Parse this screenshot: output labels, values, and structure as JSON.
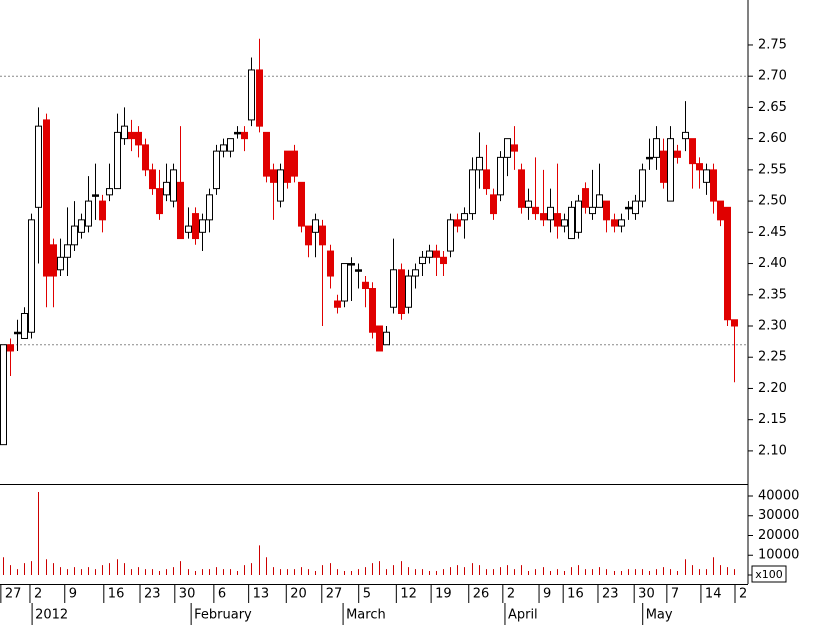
{
  "chart_data": {
    "type": "candlestick",
    "open": [
      2.11,
      2.27,
      2.29,
      2.28,
      2.29,
      2.49,
      2.63,
      2.43,
      2.39,
      2.41,
      2.43,
      2.45,
      2.46,
      2.51,
      2.5,
      2.51,
      2.52,
      2.6,
      2.61,
      2.61,
      2.59,
      2.55,
      2.52,
      2.51,
      2.5,
      2.53,
      2.45,
      2.48,
      2.45,
      2.47,
      2.52,
      2.58,
      2.58,
      2.61,
      2.61,
      2.63,
      2.71,
      2.61,
      2.55,
      2.5,
      2.58,
      2.58,
      2.53,
      2.46,
      2.45,
      2.46,
      2.42,
      2.34,
      2.34,
      2.4,
      2.39,
      2.37,
      2.36,
      2.3,
      2.27,
      2.33,
      2.39,
      2.33,
      2.38,
      2.4,
      2.41,
      2.42,
      2.41,
      2.42,
      2.47,
      2.47,
      2.48,
      2.55,
      2.55,
      2.51,
      2.51,
      2.57,
      2.59,
      2.55,
      2.49,
      2.49,
      2.48,
      2.47,
      2.48,
      2.46,
      2.44,
      2.45,
      2.52,
      2.48,
      2.49,
      2.5,
      2.47,
      2.46,
      2.49,
      2.48,
      2.5,
      2.57,
      2.57,
      2.58,
      2.5,
      2.58,
      2.6,
      2.6,
      2.56,
      2.53,
      2.55,
      2.5,
      2.49,
      2.31
    ],
    "high": [
      2.27,
      2.28,
      2.31,
      2.33,
      2.48,
      2.65,
      2.64,
      2.44,
      2.44,
      2.49,
      2.5,
      2.48,
      2.54,
      2.56,
      2.51,
      2.56,
      2.64,
      2.65,
      2.63,
      2.62,
      2.6,
      2.56,
      2.55,
      2.56,
      2.56,
      2.62,
      2.49,
      2.49,
      2.48,
      2.52,
      2.59,
      2.6,
      2.6,
      2.62,
      2.62,
      2.73,
      2.76,
      2.61,
      2.56,
      2.56,
      2.58,
      2.59,
      2.53,
      2.46,
      2.48,
      2.47,
      2.43,
      2.35,
      2.4,
      2.41,
      2.4,
      2.38,
      2.37,
      2.3,
      2.3,
      2.44,
      2.4,
      2.39,
      2.4,
      2.42,
      2.43,
      2.43,
      2.42,
      2.48,
      2.48,
      2.49,
      2.57,
      2.61,
      2.59,
      2.52,
      2.58,
      2.6,
      2.62,
      2.56,
      2.52,
      2.57,
      2.55,
      2.52,
      2.56,
      2.48,
      2.5,
      2.51,
      2.53,
      2.55,
      2.56,
      2.5,
      2.48,
      2.48,
      2.5,
      2.51,
      2.56,
      2.6,
      2.62,
      2.6,
      2.62,
      2.59,
      2.66,
      2.6,
      2.57,
      2.56,
      2.56,
      2.5,
      2.49,
      2.31
    ],
    "low": [
      2.11,
      2.22,
      2.26,
      2.28,
      2.28,
      2.4,
      2.33,
      2.33,
      2.38,
      2.38,
      2.42,
      2.44,
      2.45,
      2.47,
      2.45,
      2.5,
      2.52,
      2.59,
      2.58,
      2.57,
      2.54,
      2.51,
      2.47,
      2.5,
      2.49,
      2.44,
      2.44,
      2.43,
      2.42,
      2.45,
      2.51,
      2.57,
      2.57,
      2.6,
      2.58,
      2.62,
      2.61,
      2.53,
      2.47,
      2.49,
      2.52,
      2.53,
      2.45,
      2.41,
      2.41,
      2.3,
      2.36,
      2.32,
      2.33,
      2.34,
      2.36,
      2.33,
      2.28,
      2.26,
      2.27,
      2.32,
      2.31,
      2.32,
      2.36,
      2.38,
      2.4,
      2.38,
      2.38,
      2.41,
      2.45,
      2.44,
      2.47,
      2.52,
      2.51,
      2.47,
      2.5,
      2.54,
      2.55,
      2.48,
      2.47,
      2.47,
      2.46,
      2.45,
      2.44,
      2.45,
      2.44,
      2.44,
      2.48,
      2.47,
      2.49,
      2.45,
      2.45,
      2.45,
      2.47,
      2.47,
      2.49,
      2.55,
      2.55,
      2.52,
      2.5,
      2.56,
      2.58,
      2.52,
      2.52,
      2.51,
      2.48,
      2.46,
      2.3,
      2.21
    ],
    "close": [
      2.27,
      2.26,
      2.29,
      2.32,
      2.47,
      2.62,
      2.38,
      2.38,
      2.41,
      2.43,
      2.46,
      2.47,
      2.5,
      2.51,
      2.47,
      2.52,
      2.61,
      2.62,
      2.6,
      2.59,
      2.55,
      2.52,
      2.48,
      2.53,
      2.55,
      2.44,
      2.46,
      2.44,
      2.47,
      2.51,
      2.58,
      2.59,
      2.6,
      2.61,
      2.6,
      2.71,
      2.62,
      2.54,
      2.53,
      2.55,
      2.53,
      2.54,
      2.46,
      2.43,
      2.47,
      2.43,
      2.38,
      2.33,
      2.4,
      2.4,
      2.39,
      2.36,
      2.29,
      2.26,
      2.29,
      2.39,
      2.32,
      2.38,
      2.39,
      2.41,
      2.42,
      2.41,
      2.4,
      2.47,
      2.46,
      2.48,
      2.55,
      2.57,
      2.52,
      2.48,
      2.57,
      2.6,
      2.58,
      2.49,
      2.5,
      2.48,
      2.47,
      2.49,
      2.46,
      2.47,
      2.49,
      2.5,
      2.49,
      2.49,
      2.51,
      2.47,
      2.46,
      2.47,
      2.49,
      2.5,
      2.55,
      2.57,
      2.6,
      2.53,
      2.6,
      2.57,
      2.61,
      2.56,
      2.55,
      2.55,
      2.5,
      2.47,
      2.31,
      2.3
    ],
    "volume": [
      9000,
      5000,
      3000,
      6000,
      7000,
      42000,
      8000,
      6000,
      4000,
      3000,
      4000,
      3000,
      4000,
      3000,
      5000,
      6000,
      8000,
      6000,
      3000,
      4000,
      3000,
      3000,
      2000,
      3000,
      4000,
      7000,
      3000,
      2000,
      3000,
      3000,
      4000,
      3000,
      3000,
      2000,
      5000,
      6000,
      15000,
      9000,
      4000,
      3000,
      3000,
      3000,
      4000,
      3000,
      2000,
      5000,
      6000,
      3000,
      2000,
      2000,
      3000,
      4000,
      6000,
      7000,
      3000,
      5000,
      7000,
      4000,
      3000,
      3000,
      2000,
      2000,
      3000,
      4000,
      5000,
      4000,
      6000,
      5000,
      3000,
      3000,
      4000,
      5000,
      3000,
      5000,
      2000,
      3000,
      4000,
      2000,
      3000,
      2000,
      4000,
      5000,
      3000,
      3000,
      4000,
      3000,
      2000,
      2000,
      3000,
      3000,
      3000,
      2000,
      3000,
      4000,
      3000,
      2000,
      8000,
      5000,
      3000,
      3000,
      9000,
      5000,
      4000,
      3000
    ],
    "up_color": "#ffffff",
    "down_color": "#e00000",
    "flat_color": "#000000",
    "volume_color": "#cc0000",
    "reference_lines": [
      2.7,
      2.27
    ],
    "xlim": [
      -0.42,
      104.93
    ],
    "ylim": [
      2.047,
      2.822
    ],
    "yticks": [
      {
        "value": 2.1,
        "label": "2.10"
      },
      2.15,
      {
        "value": 2.2,
        "label": "2.20"
      },
      2.25,
      {
        "value": 2.3,
        "label": "2.30"
      },
      2.35,
      {
        "value": 2.4,
        "label": "2.40"
      },
      2.45,
      {
        "value": 2.5,
        "label": "2.50"
      },
      2.55,
      {
        "value": 2.6,
        "label": "2.60"
      },
      2.65,
      {
        "value": 2.7,
        "label": "2.70"
      },
      2.75
    ],
    "y2lim": [
      -4560,
      45570
    ],
    "y2ticks": [
      0,
      10000,
      20000,
      30000,
      40000
    ],
    "volume_unit": "x100",
    "xticks": [
      {
        "value": -0.3,
        "label": "27"
      },
      {
        "value": 3.8,
        "label": "2"
      },
      {
        "value": 8.7,
        "label": "9"
      },
      {
        "value": 14.2,
        "label": "16"
      },
      {
        "value": 19.3,
        "label": "23"
      },
      {
        "value": 24.2,
        "label": "30"
      },
      {
        "value": 29.7,
        "label": "6"
      },
      {
        "value": 34.6,
        "label": "13"
      },
      {
        "value": 39.9,
        "label": "20"
      },
      {
        "value": 44.9,
        "label": "27"
      },
      {
        "value": 50.1,
        "label": "5"
      },
      {
        "value": 55.4,
        "label": "12"
      },
      {
        "value": 60.3,
        "label": "19"
      },
      {
        "value": 65.6,
        "label": "26"
      },
      {
        "value": 70.4,
        "label": "2"
      },
      {
        "value": 75.5,
        "label": "9"
      },
      {
        "value": 78.9,
        "label": "16"
      },
      {
        "value": 83.8,
        "label": "23"
      },
      {
        "value": 88.9,
        "label": "30"
      },
      {
        "value": 93.5,
        "label": "7"
      },
      {
        "value": 98.3,
        "label": "14"
      },
      {
        "value": 103.1,
        "label": "2"
      }
    ],
    "month_ticks": [
      {
        "value": 4.1,
        "label": "2012"
      },
      {
        "value": 26.5,
        "label": "February"
      },
      {
        "value": 47.9,
        "label": "March"
      },
      {
        "value": 70.7,
        "label": "April"
      },
      {
        "value": 90.1,
        "label": "May"
      }
    ]
  }
}
